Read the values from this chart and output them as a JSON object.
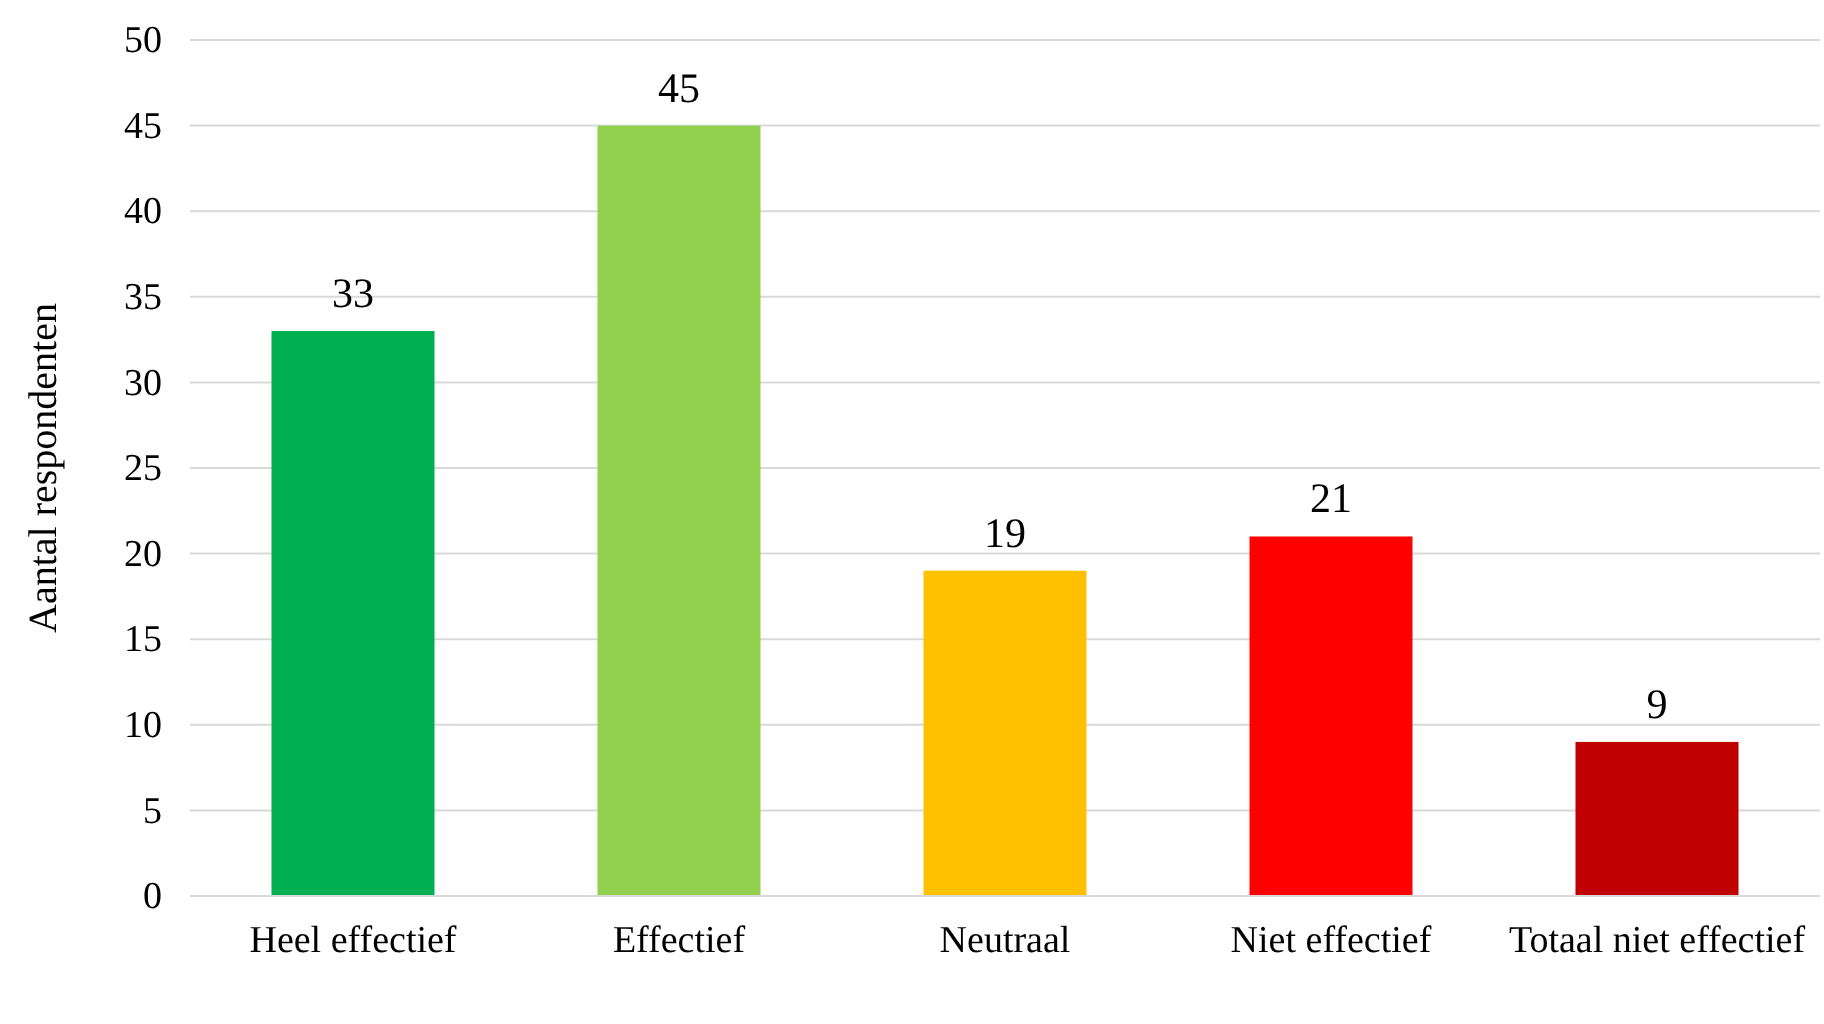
{
  "chart_data": {
    "type": "bar",
    "ylabel": "Aantal respondenten",
    "categories": [
      "Heel effectief",
      "Effectief",
      "Neutraal",
      "Niet effectief",
      "Totaal niet effectief"
    ],
    "values": [
      33,
      45,
      19,
      21,
      9
    ],
    "colors": [
      "#00b050",
      "#92d050",
      "#ffc000",
      "#ff0000",
      "#c00000"
    ],
    "ylim": [
      0,
      50
    ],
    "yticks": [
      0,
      5,
      10,
      15,
      20,
      25,
      30,
      35,
      40,
      45,
      50
    ],
    "grid": "y",
    "data_labels": true
  }
}
